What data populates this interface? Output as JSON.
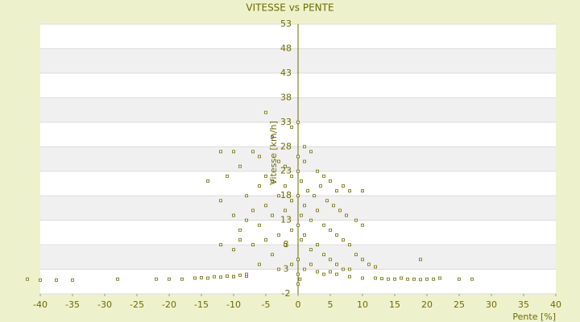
{
  "chart_data": {
    "type": "scatter",
    "title": "VITESSE vs PENTE",
    "x_label": "Pente [%]",
    "y_label": "Vitesse [km/h]",
    "xlim": [
      -40,
      40
    ],
    "xticks": [
      -40,
      -35,
      -30,
      -25,
      -20,
      -15,
      -10,
      -5,
      0,
      5,
      10,
      15,
      20,
      25,
      30,
      35,
      40
    ],
    "ylim": [
      -2,
      53
    ],
    "yticks": [
      -2,
      3,
      8,
      13,
      18,
      23,
      28,
      33,
      38,
      43,
      48,
      53
    ],
    "grid": true,
    "series": [
      {
        "name": "Vitesse",
        "color": "#6b6b00",
        "x": [
          -42,
          -40,
          -37.5,
          -35,
          -28,
          -22,
          -20,
          -18,
          -16,
          -15,
          -14,
          -13,
          -12,
          -11,
          -10,
          -9,
          -8,
          12,
          13,
          14,
          15,
          16,
          17,
          18,
          19,
          20,
          21,
          22,
          25,
          27,
          -5,
          0,
          -4,
          -1,
          1,
          2,
          -12,
          -10,
          -7,
          -6,
          -11,
          -14,
          -9,
          -3,
          -2,
          0,
          1,
          3,
          4,
          5,
          6,
          7,
          8,
          10,
          -12,
          -8,
          -6,
          -5,
          -4,
          -2,
          -1,
          0,
          0.5,
          1.5,
          2.5,
          3.5,
          4.5,
          5.5,
          6.5,
          7.5,
          9,
          10,
          -10,
          -9,
          -8,
          -7,
          -6,
          -5,
          -4,
          -3,
          -2,
          -1,
          0,
          0.5,
          1,
          2,
          3,
          4,
          5,
          6,
          7,
          8,
          9,
          10,
          11,
          12,
          -12,
          -10,
          -9,
          -7,
          -5,
          -4,
          -3,
          -2,
          -1,
          0,
          0.5,
          1,
          2,
          3,
          4,
          5,
          6,
          7,
          8,
          -6,
          -3,
          -1,
          0,
          0,
          1,
          2,
          3,
          4,
          5,
          6,
          8,
          10,
          -8,
          -10,
          19,
          0,
          0.3
        ],
        "values": [
          1,
          0.8,
          0.8,
          0.8,
          1,
          1,
          1,
          1,
          1.2,
          1.3,
          1.2,
          1.5,
          1.4,
          1.6,
          1.5,
          1.8,
          1.6,
          1.2,
          1.1,
          1.0,
          1.0,
          1.2,
          1.0,
          1.0,
          0.9,
          1.0,
          1.0,
          1.2,
          1.0,
          1.0,
          35,
          33,
          30,
          32,
          28,
          27,
          27,
          27,
          27,
          26,
          22,
          21,
          24,
          25,
          24,
          26,
          25,
          23,
          22,
          21,
          19,
          20,
          19,
          19,
          17,
          18,
          20,
          22,
          21,
          20,
          22,
          23,
          21,
          19,
          18,
          20,
          17,
          16,
          15,
          14,
          13,
          12,
          14,
          11,
          13,
          15,
          12,
          16,
          14,
          18,
          15,
          17,
          18,
          14,
          16,
          13,
          15,
          12,
          11,
          10,
          9,
          8,
          6,
          5,
          4,
          3.5,
          8,
          7,
          9,
          8,
          9,
          6,
          10,
          8,
          11,
          12,
          9,
          10,
          7,
          8,
          6,
          5,
          4,
          3,
          3,
          4,
          3,
          4,
          5,
          2,
          3,
          4,
          2.5,
          2,
          2.5,
          2,
          1.5,
          1.2,
          2,
          1.5,
          5,
          0,
          1
        ]
      }
    ]
  }
}
